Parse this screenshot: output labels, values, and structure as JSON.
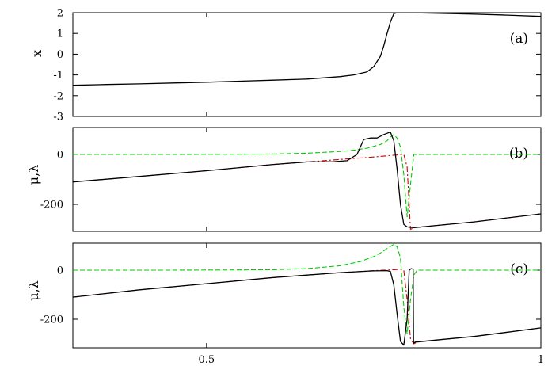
{
  "chart_data": [
    {
      "type": "line",
      "panel_tag": "(a)",
      "ylabel": "x",
      "xlim": [
        0.3,
        1.0
      ],
      "ylim": [
        -3,
        2
      ],
      "yticks": [
        "2",
        "1",
        "0",
        "-1",
        "-2",
        "-3"
      ],
      "x_tick_labels": [
        "",
        ""
      ],
      "grid": false,
      "series": [
        {
          "color": "#000000",
          "dash": "solid",
          "x": [
            0.3,
            0.35,
            0.4,
            0.45,
            0.5,
            0.55,
            0.6,
            0.65,
            0.7,
            0.72,
            0.74,
            0.75,
            0.76,
            0.765,
            0.77,
            0.775,
            0.78,
            0.785,
            0.79,
            0.8,
            0.85,
            0.9,
            0.95,
            1.0
          ],
          "y": [
            -1.5,
            -1.46,
            -1.43,
            -1.39,
            -1.35,
            -1.3,
            -1.25,
            -1.2,
            -1.08,
            -1.0,
            -0.85,
            -0.6,
            -0.1,
            0.4,
            1.0,
            1.55,
            1.95,
            2.0,
            2.0,
            2.0,
            1.97,
            1.93,
            1.88,
            1.82
          ]
        }
      ]
    },
    {
      "type": "line",
      "panel_tag": "(b)",
      "ylabel": "μ,λ",
      "xlim": [
        0.3,
        1.0
      ],
      "ylim": [
        -300,
        100
      ],
      "yticks": [
        "0",
        "-200"
      ],
      "x_tick_labels": [
        "",
        ""
      ],
      "grid": false,
      "series": [
        {
          "color": "#00cc00",
          "dash": "dashed",
          "x": [
            0.3,
            0.45,
            0.55,
            0.6,
            0.65,
            0.7,
            0.72,
            0.74,
            0.76,
            0.77,
            0.775,
            0.78,
            0.785,
            0.79,
            0.795,
            0.8,
            0.805,
            0.81,
            0.85,
            1.0
          ],
          "y": [
            0,
            0,
            1,
            2,
            5,
            12,
            17,
            25,
            40,
            55,
            70,
            80,
            65,
            30,
            -80,
            -250,
            -120,
            0,
            0,
            0
          ]
        },
        {
          "color": "#cc0000",
          "dash": "dashdot",
          "x": [
            0.3,
            0.4,
            0.5,
            0.6,
            0.65,
            0.7,
            0.75,
            0.78,
            0.795,
            0.8,
            0.805,
            0.81,
            0.815,
            0.85,
            0.9,
            1.0
          ],
          "y": [
            -110,
            -88,
            -65,
            -40,
            -30,
            -20,
            -10,
            -3,
            0,
            -50,
            -300,
            -293,
            -292,
            -283,
            -270,
            -238
          ]
        },
        {
          "color": "#000000",
          "dash": "solid",
          "x": [
            0.3,
            0.4,
            0.5,
            0.6,
            0.65,
            0.69,
            0.71,
            0.725,
            0.735,
            0.745,
            0.755,
            0.765,
            0.775,
            0.78,
            0.785,
            0.79,
            0.795,
            0.8,
            0.805,
            0.81,
            0.815,
            0.85,
            0.9,
            1.0
          ],
          "y": [
            -110,
            -88,
            -65,
            -40,
            -30,
            -29,
            -25,
            0,
            60,
            66,
            66,
            80,
            90,
            55,
            -60,
            -200,
            -280,
            -290,
            -292,
            -293,
            -292,
            -283,
            -270,
            -238
          ]
        }
      ]
    },
    {
      "type": "line",
      "panel_tag": "(c)",
      "ylabel": "μ,λ",
      "xlim": [
        0.3,
        1.0
      ],
      "ylim": [
        -300,
        100
      ],
      "yticks": [
        "0",
        "-200"
      ],
      "x_tick_labels": [
        "0.5",
        "1"
      ],
      "grid": false,
      "series": [
        {
          "color": "#00cc00",
          "dash": "dashed",
          "x": [
            0.3,
            0.45,
            0.55,
            0.6,
            0.65,
            0.7,
            0.73,
            0.75,
            0.76,
            0.77,
            0.78,
            0.785,
            0.79,
            0.795,
            0.8,
            0.805,
            0.81,
            0.815,
            0.85,
            1.0
          ],
          "y": [
            0,
            0,
            1,
            2,
            6,
            18,
            35,
            55,
            70,
            88,
            105,
            95,
            50,
            -150,
            -260,
            -120,
            -20,
            0,
            0,
            0
          ]
        },
        {
          "color": "#cc0000",
          "dash": "dashdot",
          "x": [
            0.3,
            0.4,
            0.5,
            0.6,
            0.7,
            0.75,
            0.78,
            0.79,
            0.795,
            0.8,
            0.805,
            0.81,
            0.815,
            0.85,
            0.9,
            1.0
          ],
          "y": [
            -110,
            -80,
            -55,
            -30,
            -10,
            -2,
            2,
            4,
            0,
            -120,
            -280,
            -300,
            -293,
            -283,
            -270,
            -235
          ]
        },
        {
          "color": "#000000",
          "dash": "solid",
          "x": [
            0.3,
            0.4,
            0.5,
            0.6,
            0.7,
            0.75,
            0.77,
            0.775,
            0.78,
            0.785,
            0.79,
            0.795,
            0.8,
            0.803,
            0.806,
            0.809,
            0.8095,
            0.812,
            0.85,
            0.9,
            1.0
          ],
          "y": [
            -110,
            -80,
            -55,
            -30,
            -10,
            -3,
            -2,
            -5,
            -60,
            -180,
            -290,
            -305,
            -200,
            0,
            6,
            4,
            -297,
            -293,
            -283,
            -270,
            -235
          ]
        }
      ]
    }
  ]
}
